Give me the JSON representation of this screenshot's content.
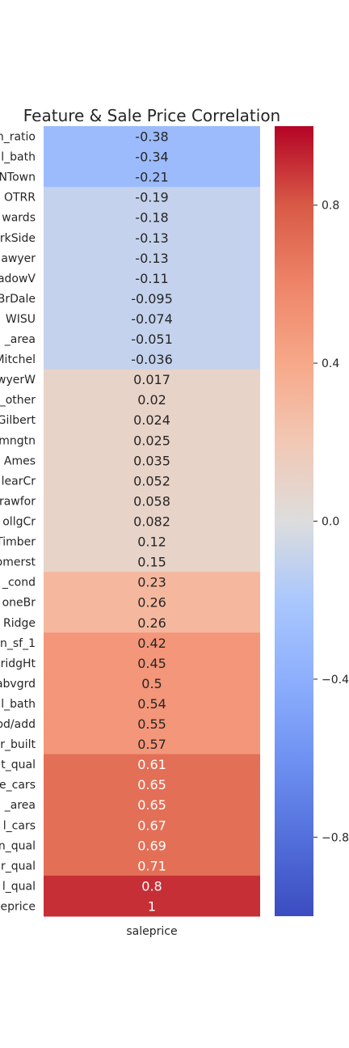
{
  "chart_data": {
    "type": "heatmap",
    "title": "Feature & Sale Price Correlation",
    "xlabel": "saleprice",
    "columns": [
      "saleprice"
    ],
    "rows": [
      "n_ratio",
      "l_bath",
      "NTown",
      "OTRR",
      "wards",
      "rkSide",
      "awyer",
      "adowV",
      "BrDale",
      "WISU",
      "_area",
      "Mitchel",
      "wyerW",
      "_other",
      "Gilbert",
      "mngtn",
      "Ames",
      "learCr",
      "rawfor",
      "ollgCr",
      "Timber",
      "omerst",
      "_cond",
      "oneBr",
      "Ridge",
      "n_sf_1",
      "ridgHt",
      "abvgrd",
      "l_bath",
      "od/add",
      "r_built",
      "t_qual",
      "e_cars",
      "_area",
      "l_cars",
      "n_qual",
      "r_qual",
      "l_qual",
      "eprice"
    ],
    "values": [
      -0.38,
      -0.34,
      -0.21,
      -0.19,
      -0.18,
      -0.13,
      -0.13,
      -0.11,
      -0.095,
      -0.074,
      -0.051,
      -0.036,
      0.017,
      0.02,
      0.024,
      0.025,
      0.035,
      0.052,
      0.058,
      0.082,
      0.12,
      0.15,
      0.23,
      0.26,
      0.26,
      0.42,
      0.45,
      0.5,
      0.54,
      0.55,
      0.57,
      0.61,
      0.65,
      0.65,
      0.67,
      0.69,
      0.71,
      0.8,
      1
    ],
    "value_labels": [
      "-0.38",
      "-0.34",
      "-0.21",
      "-0.19",
      "-0.18",
      "-0.13",
      "-0.13",
      "-0.11",
      "-0.095",
      "-0.074",
      "-0.051",
      "-0.036",
      "0.017",
      "0.02",
      "0.024",
      "0.025",
      "0.035",
      "0.052",
      "0.058",
      "0.082",
      "0.12",
      "0.15",
      "0.23",
      "0.26",
      "0.26",
      "0.42",
      "0.45",
      "0.5",
      "0.54",
      "0.55",
      "0.57",
      "0.61",
      "0.65",
      "0.65",
      "0.67",
      "0.69",
      "0.71",
      "0.8",
      "1"
    ],
    "colormap": "coolwarm",
    "vmin": -1,
    "vmax": 1,
    "colorbar_ticks": [
      -0.8,
      -0.4,
      0.0,
      0.4,
      0.8
    ],
    "colorbar_tick_labels": [
      "−0.8",
      "−0.4",
      "0.0",
      "0.4",
      "0.8"
    ]
  }
}
